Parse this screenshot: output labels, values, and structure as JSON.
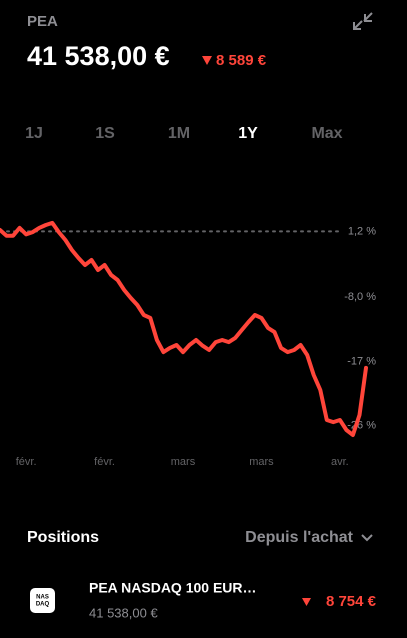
{
  "header": {
    "account": "PEA",
    "balance": "41 538,00 €",
    "change": "8 589 €"
  },
  "periods": {
    "items": [
      "1J",
      "1S",
      "1M",
      "1Y",
      "Max"
    ],
    "selected": 3
  },
  "chart_data": {
    "type": "line",
    "categories": [
      null,
      null,
      null,
      null,
      "févr.",
      null,
      null,
      null,
      null,
      null,
      null,
      null,
      null,
      null,
      null,
      null,
      "févr.",
      null,
      null,
      null,
      null,
      null,
      null,
      null,
      null,
      null,
      null,
      null,
      "mars",
      null,
      null,
      null,
      null,
      null,
      null,
      null,
      null,
      null,
      null,
      null,
      "mars",
      null,
      null,
      null,
      null,
      null,
      null,
      null,
      null,
      null,
      null,
      null,
      "avr.",
      null,
      null,
      null,
      null
    ],
    "series": [
      {
        "color": "#ff453a",
        "values": [
          1.4,
          0.6,
          0.6,
          1.7,
          0.8,
          1.1,
          1.7,
          2.1,
          2.4,
          1.1,
          0.0,
          -1.4,
          -2.5,
          -3.5,
          -2.8,
          -4.2,
          -3.5,
          -4.9,
          -5.6,
          -7.0,
          -8.1,
          -9.1,
          -10.5,
          -10.9,
          -14.0,
          -15.7,
          -15.1,
          -14.7,
          -15.7,
          -14.7,
          -14.0,
          -14.8,
          -15.4,
          -14.3,
          -14.0,
          -14.3,
          -13.7,
          -12.6,
          -11.5,
          -10.5,
          -10.9,
          -12.3,
          -12.9,
          -15.1,
          -15.7,
          -15.4,
          -14.7,
          -16.1,
          -18.9,
          -21.0,
          -25.2,
          -25.5,
          -25.2,
          -26.6,
          -27.3,
          -24.5,
          -17.9
        ]
      }
    ],
    "ylim": [
      -28,
      7
    ],
    "yticks": [
      {
        "value": 1.2,
        "label": "1,2 %"
      },
      {
        "value": -8.0,
        "label": "-8,0 %"
      },
      {
        "value": -17,
        "label": "-17 %"
      },
      {
        "value": -26,
        "label": "-26 %"
      }
    ],
    "reference_line": 1.2
  },
  "positions": {
    "title": "Positions",
    "sort": "Depuis l'achat",
    "items": [
      {
        "icon": "NAS DAQ",
        "name": "PEA NASDAQ 100 EUR…",
        "value": "41 538,00 €",
        "change": "8 754 €"
      }
    ]
  }
}
